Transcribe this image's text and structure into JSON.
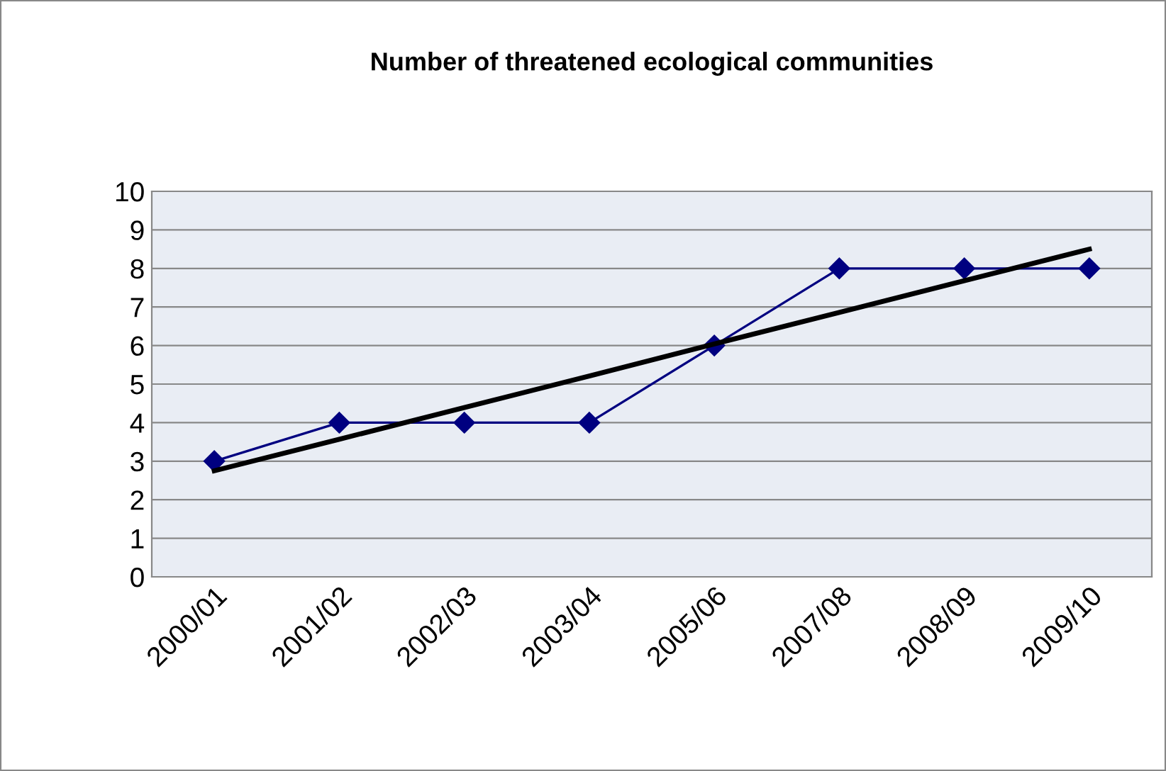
{
  "chart_data": {
    "type": "line",
    "title": "Number of threatened ecological communities",
    "categories": [
      "2000/01",
      "2001/02",
      "2002/03",
      "2003/04",
      "2005/06",
      "2007/08",
      "2008/09",
      "2009/10"
    ],
    "series": [
      {
        "color": "#000080",
        "marker": "diamond",
        "values": [
          3,
          4,
          4,
          4,
          6,
          8,
          8,
          8
        ]
      },
      {
        "color": "#000000",
        "marker": "none",
        "values": [
          2.75,
          3.57,
          4.39,
          5.21,
          6.04,
          6.86,
          7.68,
          8.5
        ]
      }
    ],
    "ylim": [
      0,
      10
    ],
    "yticks": [
      0,
      1,
      2,
      3,
      4,
      5,
      6,
      7,
      8,
      9,
      10
    ],
    "grid": "y"
  }
}
